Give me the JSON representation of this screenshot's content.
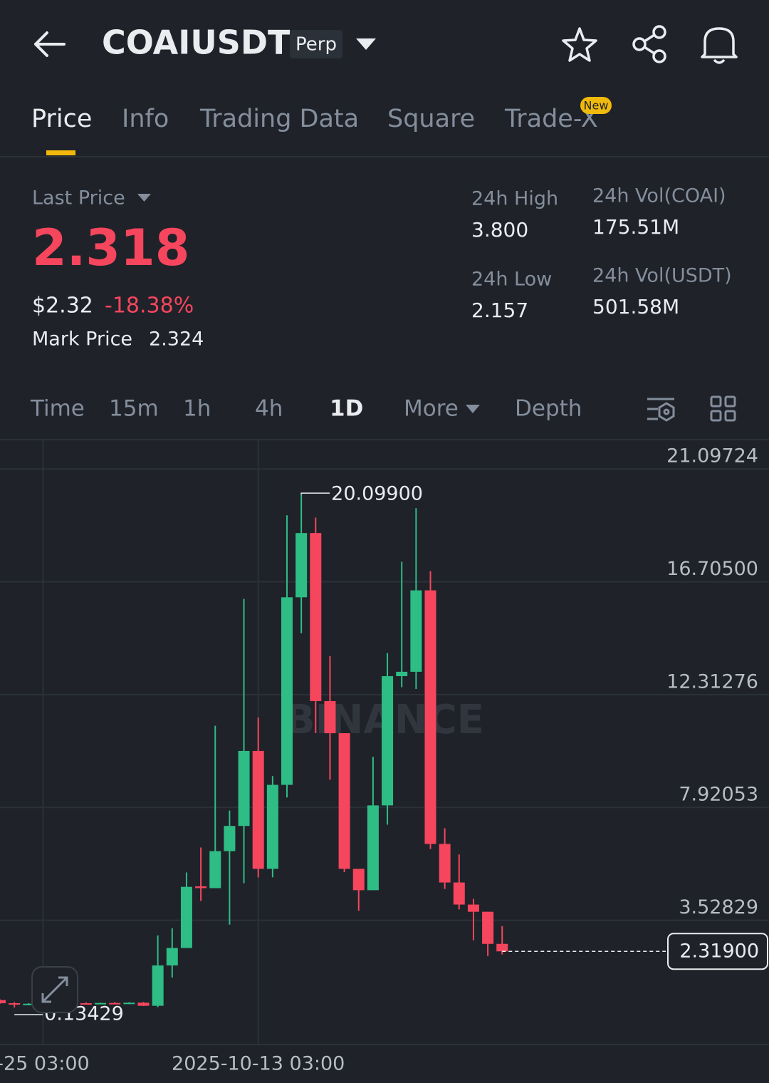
{
  "header": {
    "symbol": "COAIUSDT",
    "badge": "Perp"
  },
  "tabs": {
    "items": [
      "Price",
      "Info",
      "Trading Data",
      "Square",
      "Trade-X"
    ],
    "new_badge": "New"
  },
  "stats": {
    "last_price_label": "Last Price",
    "last_price": "2.318",
    "usd_price": "$2.32",
    "change": "-18.38%",
    "mark_label": "Mark Price",
    "mark_price": "2.324",
    "high_label": "24h High",
    "high": "3.800",
    "low_label": "24h Low",
    "low": "2.157",
    "vol_coai_label": "24h Vol(COAI)",
    "vol_coai": "175.51M",
    "vol_usdt_label": "24h Vol(USDT)",
    "vol_usdt": "501.58M"
  },
  "intervals": [
    "Time",
    "15m",
    "1h",
    "4h",
    "1D",
    "More",
    "Depth"
  ],
  "chart_data": {
    "type": "candlestick",
    "watermark": "BINANCE",
    "categories": [
      null,
      null,
      null,
      "-25 03:00",
      null,
      null,
      null,
      null,
      null,
      null,
      null,
      null,
      null,
      null,
      null,
      null,
      null,
      null,
      "2025-10-13 03:00",
      null,
      null,
      null,
      null,
      null,
      null,
      null,
      null,
      null,
      null,
      null,
      null,
      null,
      null,
      null,
      null,
      null
    ],
    "open": [
      0.42,
      0.3,
      0.26,
      0.28,
      0.27,
      0.29,
      0.3,
      0.29,
      0.31,
      0.3,
      0.32,
      0.2,
      1.77,
      2.45,
      4.85,
      4.78,
      6.22,
      7.2,
      10.12,
      5.53,
      8.8,
      16.1,
      18.6,
      12.06,
      10.81,
      5.53,
      4.7,
      8.0,
      13.03,
      13.2,
      16.37,
      6.5,
      5.0,
      4.14,
      3.86,
      2.61
    ],
    "high": [
      0.45,
      0.34,
      0.3,
      0.31,
      0.31,
      0.33,
      0.33,
      0.32,
      0.34,
      0.34,
      0.35,
      2.94,
      3.22,
      5.39,
      6.36,
      11.1,
      7.8,
      16.04,
      11.42,
      9.14,
      19.29,
      20.099,
      19.2,
      13.81,
      10.81,
      5.53,
      9.89,
      13.93,
      17.48,
      19.57,
      17.12,
      7.11,
      6.09,
      4.36,
      3.86,
      3.3
    ],
    "low": [
      0.28,
      0.13429,
      0.22,
      0.24,
      0.24,
      0.26,
      0.27,
      0.26,
      0.28,
      0.27,
      0.19,
      0.15,
      1.3,
      2.45,
      4.28,
      4.78,
      3.36,
      4.97,
      5.2,
      5.2,
      8.31,
      14.7,
      10.81,
      9.0,
      5.4,
      3.9,
      4.7,
      7.25,
      12.6,
      12.53,
      6.3,
      4.75,
      3.95,
      2.75,
      2.14,
      2.2
    ],
    "close": [
      0.3,
      0.26,
      0.28,
      0.27,
      0.29,
      0.3,
      0.29,
      0.31,
      0.3,
      0.32,
      0.2,
      1.77,
      2.45,
      4.83,
      4.78,
      6.22,
      7.2,
      10.12,
      5.53,
      8.8,
      16.1,
      18.6,
      12.06,
      10.81,
      5.53,
      4.7,
      8.0,
      13.03,
      13.2,
      16.37,
      6.5,
      5.0,
      4.14,
      3.86,
      2.61,
      2.319
    ],
    "up_color": "#2ebd85",
    "down_color": "#f6465d",
    "ylim": [
      -1.28,
      22.21
    ],
    "yticks": [
      21.09724,
      {
        "value": 16.705,
        "label": "16.70500"
      },
      12.31276,
      7.92053,
      3.52829
    ],
    "high_marker": {
      "value": 20.099,
      "label": "20.09900"
    },
    "low_marker": 0.13429,
    "last_marker": {
      "value": 2.319,
      "label": "2.31900"
    },
    "grid": true
  }
}
